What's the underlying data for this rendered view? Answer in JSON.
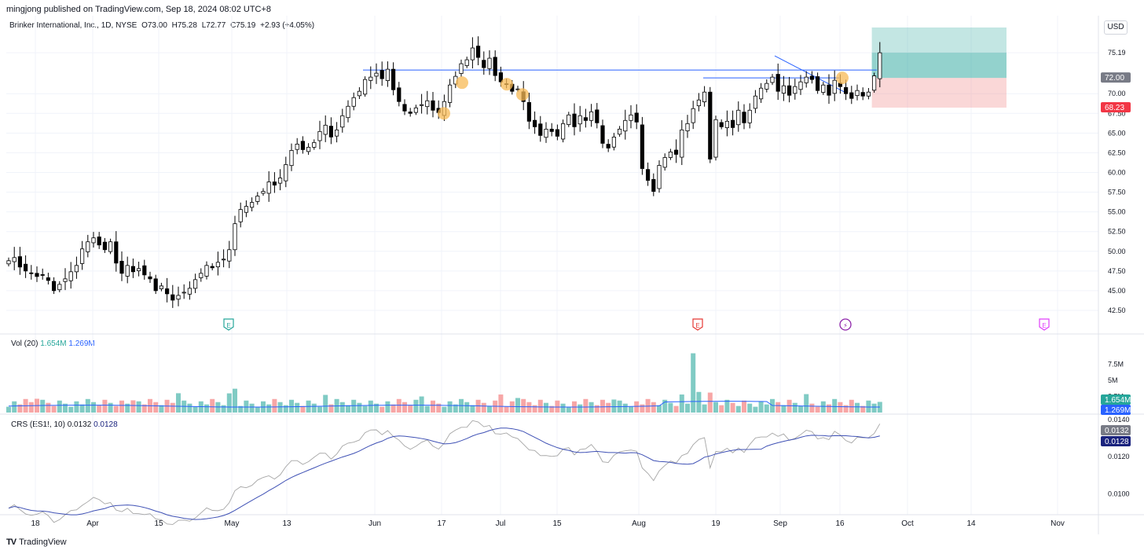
{
  "header": {
    "author_line": "mingjong published on TradingView.com, Sep 18, 2024 08:02 UTC+8"
  },
  "legend": {
    "symbol": "Brinker International, Inc., 1D, NYSE",
    "open": "O73.00",
    "high": "H75.28",
    "low": "L72.77",
    "close": "C75.19",
    "change": "+2.93 (+4.05%)"
  },
  "currency": "USD",
  "volume_legend": {
    "name": "Vol (20)",
    "value1": "1.654M",
    "value2": "1.269M"
  },
  "crs_legend": {
    "name": "CRS (ES1!, 10)",
    "value1": "0.0132",
    "value2": "0.0128"
  },
  "footer": {
    "brand": "TradingView",
    "logo": "TV"
  },
  "colors": {
    "up_candle_fill": "#ffffff",
    "down_candle_fill": "#000000",
    "candle_outline": "#000000",
    "vol_up": "#80cbc4",
    "vol_down": "#f7a6a6",
    "vol_ma": "#2962ff",
    "crs_line": "#a5a5a5",
    "crs_ma": "#3f51b5",
    "level_line": "#2962ff",
    "target_zone": "#26a69a",
    "stop_zone": "#f28b8b",
    "earnings_green": "#26a69a",
    "earnings_red": "#e53935",
    "earnings_magenta": "#e040fb",
    "marker_orange": "#f7b955"
  },
  "chart_data": [
    {
      "type": "candlestick",
      "title": "Brinker International, Inc., 1D, NYSE",
      "x_ticks": [
        "18",
        "Apr",
        "15",
        "May",
        "13",
        "Jun",
        "17",
        "Jul",
        "15",
        "Aug",
        "19",
        "Sep",
        "16",
        "Oct",
        "14",
        "Nov"
      ],
      "y_ticks": [
        "42.50",
        "45.00",
        "47.50",
        "50.00",
        "52.50",
        "55.00",
        "57.50",
        "60.00",
        "62.50",
        "65.00",
        "67.50",
        "70.00",
        "75.19"
      ],
      "ylim": [
        41.5,
        77.5
      ],
      "closes": [
        48.8,
        49.2,
        48.0,
        47.5,
        47.2,
        46.8,
        47.0,
        46.3,
        45.0,
        45.8,
        46.5,
        47.4,
        48.2,
        50.3,
        51.2,
        51.7,
        50.8,
        50.2,
        51.2,
        48.5,
        47.2,
        48.2,
        47.4,
        47.8,
        47.0,
        46.5,
        45.0,
        45.6,
        44.6,
        43.8,
        44.4,
        44.8,
        45.3,
        46.4,
        47.2,
        48.2,
        47.9,
        48.6,
        49.0,
        50.2,
        53.5,
        55.3,
        55.7,
        56.2,
        57.0,
        57.6,
        58.8,
        58.4,
        59.3,
        61.0,
        62.8,
        63.6,
        62.9,
        63.2,
        63.8,
        65.2,
        66.0,
        64.5,
        65.4,
        67.2,
        68.4,
        69.5,
        70.3,
        71.8,
        72.1,
        72.6,
        71.9,
        73.1,
        70.5,
        69.0,
        67.8,
        67.5,
        68.2,
        68.6,
        69.1,
        67.9,
        67.6,
        69.0,
        71.1,
        72.2,
        73.8,
        74.3,
        75.8,
        74.6,
        73.3,
        74.5,
        72.3,
        71.5,
        71.2,
        70.3,
        70.6,
        69.0,
        66.5,
        65.8,
        64.7,
        65.5,
        65.2,
        64.6,
        66.2,
        67.3,
        65.8,
        67.2,
        66.6,
        67.7,
        66.3,
        63.7,
        63.1,
        64.5,
        65.5,
        66.6,
        67.3,
        66.4,
        60.5,
        59.0,
        57.6,
        60.9,
        61.9,
        62.6,
        62.3,
        65.4,
        66.2,
        68.1,
        69.2,
        70.2,
        61.7,
        66.7,
        65.8,
        66.5,
        65.7,
        67.9,
        66.3,
        67.9,
        69.7,
        70.7,
        71.3,
        72.1,
        70.3,
        71.0,
        69.8,
        70.9,
        71.5,
        72.1,
        71.8,
        70.4,
        71.1,
        69.8,
        71.7,
        70.9,
        70.0,
        69.4,
        70.4,
        69.7,
        70.2,
        72.26,
        75.19
      ],
      "levels": [
        {
          "name": "resistance",
          "value": 73.0
        },
        {
          "name": "breakout",
          "value": 72.0
        }
      ],
      "price_labels": [
        {
          "name": "entry",
          "value": "72.00"
        },
        {
          "name": "stop",
          "value": "68.23"
        }
      ],
      "last_price": "75.19",
      "target_zone": [
        72.0,
        78.4
      ],
      "stop_zone": [
        68.23,
        72.0
      ],
      "events": [
        {
          "name": "earnings-1",
          "label": "E",
          "kind": "earnings"
        },
        {
          "name": "earnings-2",
          "label": "E",
          "kind": "earnings-red"
        },
        {
          "name": "dividend",
          "label": "⚡",
          "kind": "flash"
        },
        {
          "name": "earnings-3",
          "label": "E",
          "kind": "earnings-future"
        }
      ]
    },
    {
      "type": "bar",
      "title": "Vol (20)",
      "y_ticks": [
        "2.5M",
        "5M",
        "7.5M"
      ],
      "ylim": [
        0,
        10
      ],
      "unit": "M",
      "ma_value": "1.269M",
      "last_value": "1.654M"
    },
    {
      "type": "line",
      "title": "CRS (ES1!, 10)",
      "y_ticks": [
        "0.0140",
        "0.0120",
        "0.0100"
      ],
      "ylim": [
        0.0091,
        0.01416
      ],
      "series": [
        {
          "name": "CRS",
          "last": "0.0132"
        },
        {
          "name": "MA",
          "last": "0.0128"
        }
      ]
    }
  ]
}
